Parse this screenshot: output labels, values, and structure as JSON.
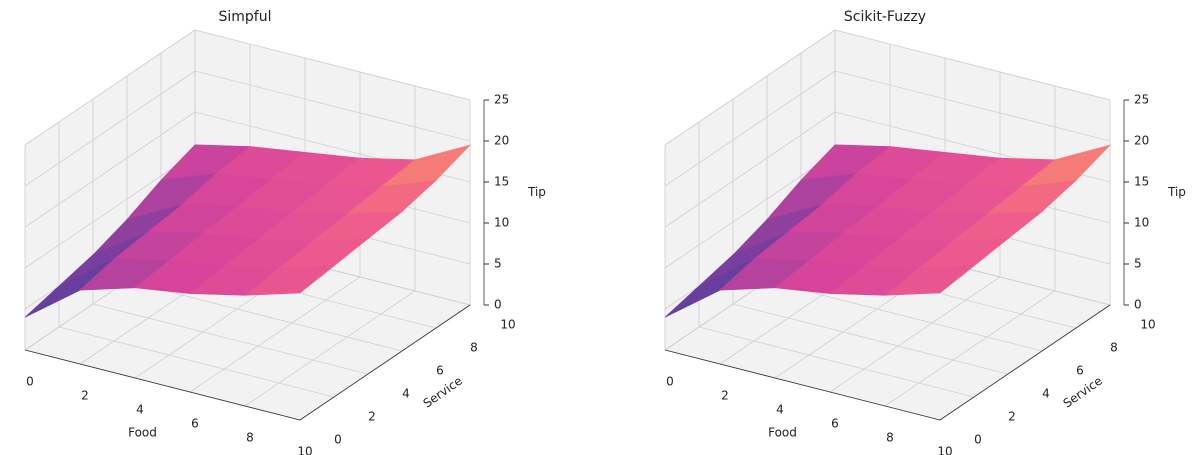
{
  "chart_data": [
    {
      "type": "surface3d",
      "title": "Simpful",
      "xlabel": "Food",
      "ylabel": "Service",
      "zlabel": "Tip",
      "x": [
        0,
        2,
        4,
        6,
        8,
        10
      ],
      "y": [
        0,
        2,
        4,
        6,
        8,
        10
      ],
      "z": [
        [
          4,
          9,
          11,
          12,
          13.5,
          15.5
        ],
        [
          5,
          10,
          11.5,
          12.5,
          14,
          16
        ],
        [
          6,
          10.5,
          12,
          13,
          14.5,
          16.5
        ],
        [
          7.5,
          11,
          12.5,
          13.5,
          15,
          17
        ],
        [
          9.5,
          12,
          13,
          14,
          15.5,
          18
        ],
        [
          11,
          12.5,
          13.5,
          14.5,
          16,
          19.5
        ]
      ],
      "xlim": [
        0,
        10
      ],
      "ylim": [
        0,
        10
      ],
      "zlim": [
        0,
        25
      ],
      "xticks": [
        0,
        2,
        4,
        6,
        8,
        10
      ],
      "yticks": [
        0,
        2,
        4,
        6,
        8,
        10
      ],
      "zticks": [
        0,
        5,
        10,
        15,
        20,
        25
      ],
      "colormap": [
        "#2d3d9c",
        "#7a3f9e",
        "#d6449c",
        "#ef5a8e",
        "#fca85a"
      ],
      "grid": true
    },
    {
      "type": "surface3d",
      "title": "Scikit-Fuzzy",
      "xlabel": "Food",
      "ylabel": "Service",
      "zlabel": "Tip",
      "x": [
        0,
        2,
        4,
        6,
        8,
        10
      ],
      "y": [
        0,
        2,
        4,
        6,
        8,
        10
      ],
      "z": [
        [
          4,
          9,
          11,
          12,
          13.5,
          15.5
        ],
        [
          5,
          10,
          11.5,
          12.5,
          14,
          16
        ],
        [
          6,
          10.5,
          12,
          13,
          14.5,
          16.5
        ],
        [
          7.5,
          11,
          12.5,
          13.5,
          15,
          17
        ],
        [
          9.5,
          12,
          13,
          14,
          15.5,
          18
        ],
        [
          11,
          12.5,
          13.5,
          14.5,
          16,
          19.5
        ]
      ],
      "xlim": [
        0,
        10
      ],
      "ylim": [
        0,
        10
      ],
      "zlim": [
        0,
        25
      ],
      "xticks": [
        0,
        2,
        4,
        6,
        8,
        10
      ],
      "yticks": [
        0,
        2,
        4,
        6,
        8,
        10
      ],
      "zticks": [
        0,
        5,
        10,
        15,
        20,
        25
      ],
      "colormap": [
        "#2d3d9c",
        "#7a3f9e",
        "#d6449c",
        "#ef5a8e",
        "#fca85a"
      ],
      "grid": true
    }
  ]
}
